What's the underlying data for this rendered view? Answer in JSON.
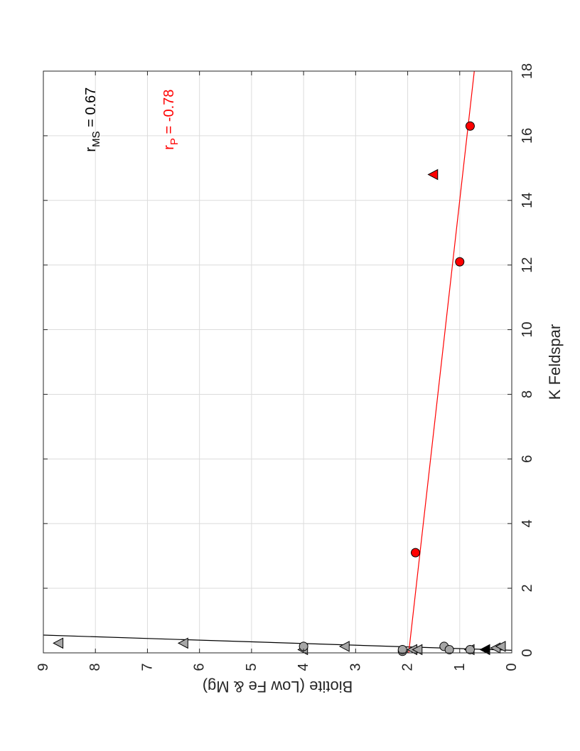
{
  "chart_data": {
    "type": "scatter",
    "orientation": "rotated-90-clockwise",
    "xlabel": "K Feldspar",
    "ylabel": "Biotite (Low Fe & Mg)",
    "xlim": [
      0,
      18
    ],
    "ylim": [
      0,
      9
    ],
    "xticks": [
      0,
      2,
      4,
      6,
      8,
      10,
      12,
      14,
      16,
      18
    ],
    "yticks": [
      0,
      1,
      2,
      3,
      4,
      5,
      6,
      7,
      8,
      9
    ],
    "grid": true,
    "colors": {
      "ms": "#000000",
      "p": "#ff0000",
      "gray": "#a6a6a6",
      "grid": "#dcdcdc",
      "axis": "#262626"
    },
    "series": [
      {
        "group": "MS",
        "marker": "triangle",
        "color": "#a6a6a6",
        "points": [
          [
            0.3,
            8.7
          ],
          [
            0.3,
            6.3
          ],
          [
            0.1,
            4.0
          ],
          [
            0.2,
            3.2
          ],
          [
            0.1,
            1.9
          ],
          [
            0.1,
            1.8
          ],
          [
            0.1,
            0.8
          ],
          [
            0.15,
            0.3
          ],
          [
            0.2,
            0.2
          ]
        ]
      },
      {
        "group": "MS",
        "marker": "circle",
        "color": "#a6a6a6",
        "points": [
          [
            0.2,
            4.0
          ],
          [
            0.05,
            2.1
          ],
          [
            0.1,
            2.1
          ],
          [
            0.2,
            1.3
          ],
          [
            0.1,
            1.2
          ],
          [
            0.1,
            0.8
          ]
        ]
      },
      {
        "group": "MS",
        "marker": "triangle",
        "color": "#000000",
        "points": [
          [
            0.1,
            0.5
          ]
        ]
      },
      {
        "group": "P",
        "marker": "circle",
        "color": "#ff0000",
        "points": [
          [
            3.1,
            1.85
          ],
          [
            12.1,
            1.0
          ],
          [
            16.3,
            0.8
          ]
        ]
      },
      {
        "group": "P",
        "marker": "triangle",
        "color": "#ff0000",
        "points": [
          [
            14.8,
            1.5
          ]
        ]
      }
    ],
    "fit_lines": [
      {
        "group": "MS",
        "color": "#000000",
        "from": [
          0.08,
          0.0
        ],
        "to": [
          0.55,
          9.0
        ]
      },
      {
        "group": "P",
        "color": "#ff0000",
        "from": [
          0.0,
          1.98
        ],
        "to": [
          18.0,
          0.72
        ]
      }
    ],
    "annotations": [
      {
        "base": "r",
        "sub": "MS",
        "rest": " = 0.67",
        "color": "#000000",
        "x": 16.5,
        "y": 8.0
      },
      {
        "base": "r",
        "sub": "P",
        "rest": " = -0.78",
        "color": "#ff0000",
        "x": 16.5,
        "y": 6.5
      }
    ]
  }
}
